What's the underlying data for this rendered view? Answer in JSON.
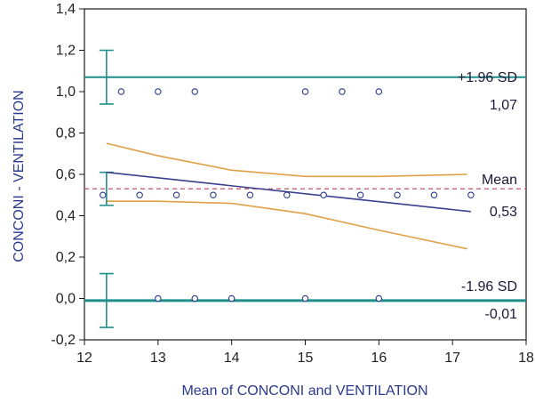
{
  "chart_data": {
    "type": "scatter",
    "title": "",
    "xlabel": "Mean of CONCONI and VENTILATION",
    "ylabel": "CONCONI - VENTILATION",
    "xlim": [
      12,
      18
    ],
    "ylim": [
      -0.2,
      1.4
    ],
    "x_ticks": [
      "12",
      "13",
      "14",
      "15",
      "16",
      "17",
      "18"
    ],
    "y_ticks": [
      "-0,2",
      "0,0",
      "0,2",
      "0,4",
      "0,6",
      "0,8",
      "1,0",
      "1,2",
      "1,4"
    ],
    "x_tick_values": [
      12,
      13,
      14,
      15,
      16,
      17,
      18
    ],
    "y_tick_values": [
      -0.2,
      0,
      0.2,
      0.4,
      0.6,
      0.8,
      1.0,
      1.2,
      1.4
    ],
    "grid": false,
    "points": [
      {
        "x": 12.5,
        "y": 1.0
      },
      {
        "x": 13.0,
        "y": 1.0
      },
      {
        "x": 13.5,
        "y": 1.0
      },
      {
        "x": 15.0,
        "y": 1.0
      },
      {
        "x": 15.5,
        "y": 1.0
      },
      {
        "x": 16.0,
        "y": 1.0
      },
      {
        "x": 12.25,
        "y": 0.5
      },
      {
        "x": 12.75,
        "y": 0.5
      },
      {
        "x": 13.25,
        "y": 0.5
      },
      {
        "x": 13.75,
        "y": 0.5
      },
      {
        "x": 14.25,
        "y": 0.5
      },
      {
        "x": 14.75,
        "y": 0.5
      },
      {
        "x": 15.25,
        "y": 0.5
      },
      {
        "x": 15.75,
        "y": 0.5
      },
      {
        "x": 16.25,
        "y": 0.5
      },
      {
        "x": 16.75,
        "y": 0.5
      },
      {
        "x": 17.25,
        "y": 0.5
      },
      {
        "x": 13.0,
        "y": 0.0
      },
      {
        "x": 13.5,
        "y": 0.0
      },
      {
        "x": 14.0,
        "y": 0.0
      },
      {
        "x": 15.0,
        "y": 0.0
      },
      {
        "x": 16.0,
        "y": 0.0
      }
    ],
    "reference_lines": {
      "upper": {
        "label": "+1.96 SD",
        "value_label": "1,07",
        "value": 1.07
      },
      "mean": {
        "label": "Mean",
        "value_label": "0,53",
        "value": 0.53
      },
      "lower": {
        "label": "-1.96 SD",
        "value_label": "-0,01",
        "value": -0.01
      }
    },
    "error_bars": {
      "x": 12.3,
      "upper": [
        0.94,
        1.2
      ],
      "mean": [
        0.45,
        0.61
      ],
      "lower": [
        -0.14,
        0.12
      ]
    },
    "regression": {
      "x": [
        12.3,
        17.25
      ],
      "y": [
        0.61,
        0.42
      ]
    },
    "confidence_band": {
      "upper": {
        "x": [
          12.3,
          13,
          14,
          15,
          16,
          17.2
        ],
        "y": [
          0.75,
          0.69,
          0.62,
          0.59,
          0.59,
          0.6
        ]
      },
      "lower": {
        "x": [
          12.3,
          13,
          14,
          15,
          16,
          17.2
        ],
        "y": [
          0.47,
          0.47,
          0.46,
          0.41,
          0.33,
          0.24
        ]
      }
    },
    "colors": {
      "reference": "#1e8f8a",
      "mean_line": "#c0506a",
      "regression": "#3a3f8f",
      "band": "#e0a048",
      "points": "#2b3a8c",
      "axis": "#1a1a1a"
    }
  }
}
